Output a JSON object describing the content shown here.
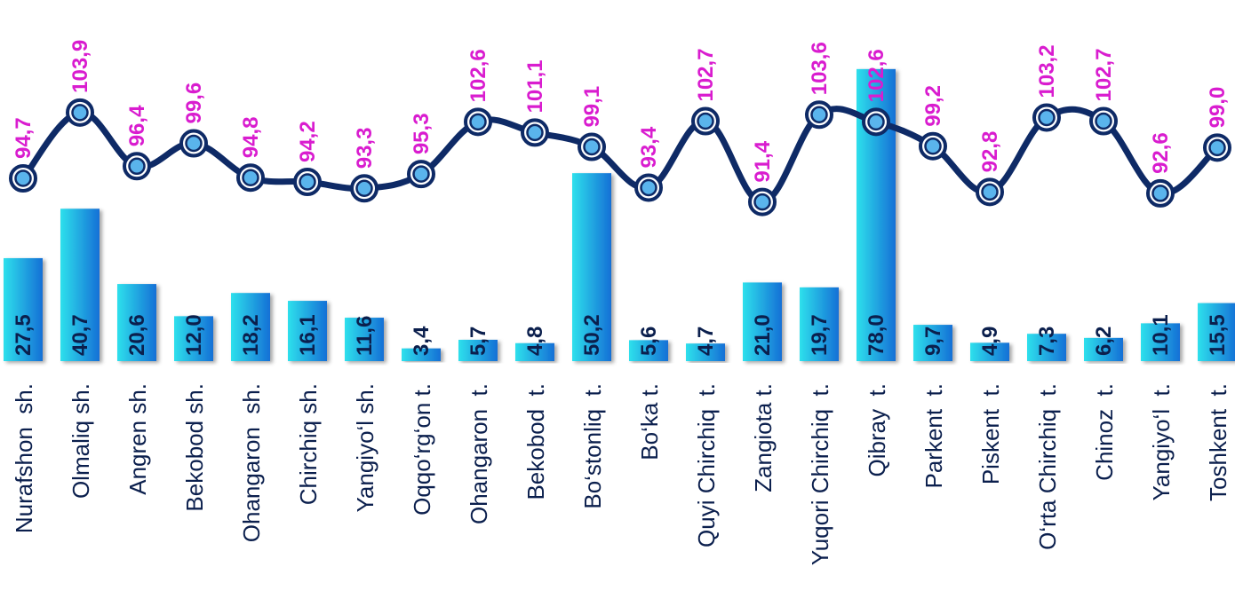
{
  "chart_data": {
    "type": "bar",
    "categories": [
      "Nurafshon  sh.",
      "Olmaliq sh.",
      "Angren sh.",
      "Bekobod sh.",
      "Ohangaron  sh.",
      "Chirchiq sh.",
      "Yangiyo‘l sh.",
      "Oqqo‘rg‘on t.",
      "Ohangaron  t.",
      "Bekobod  t.",
      "Bo‘stonliq  t.",
      "Bo‘ka t.",
      "Quyi Chirchiq  t.",
      "Zangiota t.",
      "Yuqori Chirchiq  t.",
      "Qibray  t.",
      "Parkent  t.",
      "Piskent  t.",
      "O‘rta Chirchiq  t.",
      "Chinoz  t.",
      "Yangiyo‘l  t.",
      "Toshkent  t."
    ],
    "series": [
      {
        "type": "bar",
        "values": [
          27.5,
          40.7,
          20.6,
          12.0,
          18.2,
          16.1,
          11.6,
          3.4,
          5.7,
          4.8,
          50.2,
          5.6,
          4.7,
          21.0,
          19.7,
          78.0,
          9.7,
          4.9,
          7.3,
          6.2,
          10.1,
          15.5
        ],
        "labels": [
          "27,5",
          "40,7",
          "20,6",
          "12,0",
          "18,2",
          "16,1",
          "11,6",
          "3,4",
          "5,7",
          "4,8",
          "50,2",
          "5,6",
          "4,7",
          "21,0",
          "19,7",
          "78,0",
          "9,7",
          "4,9",
          "7,3",
          "6,2",
          "10,1",
          "15,5"
        ]
      },
      {
        "type": "line",
        "values": [
          94.7,
          103.9,
          96.4,
          99.6,
          94.8,
          94.2,
          93.3,
          95.3,
          102.6,
          101.1,
          99.1,
          93.4,
          102.7,
          91.4,
          103.6,
          102.6,
          99.2,
          92.8,
          103.2,
          102.7,
          92.6,
          99.0
        ],
        "labels": [
          "94,7",
          "103,9",
          "96,4",
          "99,6",
          "94,8",
          "94,2",
          "93,3",
          "95,3",
          "102,6",
          "101,1",
          "99,1",
          "93,4",
          "102,7",
          "91,4",
          "103,6",
          "102,6",
          "99,2",
          "92,8",
          "103,2",
          "102,7",
          "92,6",
          "99,0"
        ]
      }
    ],
    "colors": {
      "bar_light": "#2ee0ec",
      "bar_dark": "#1570d6",
      "line": "#0e2a66",
      "marker_fill": "#5ab4ec",
      "line_label": "#d91ccf",
      "bar_label": "#0b1f4d",
      "category_label": "#0b1f4d"
    },
    "grid": false,
    "legend": "none"
  }
}
